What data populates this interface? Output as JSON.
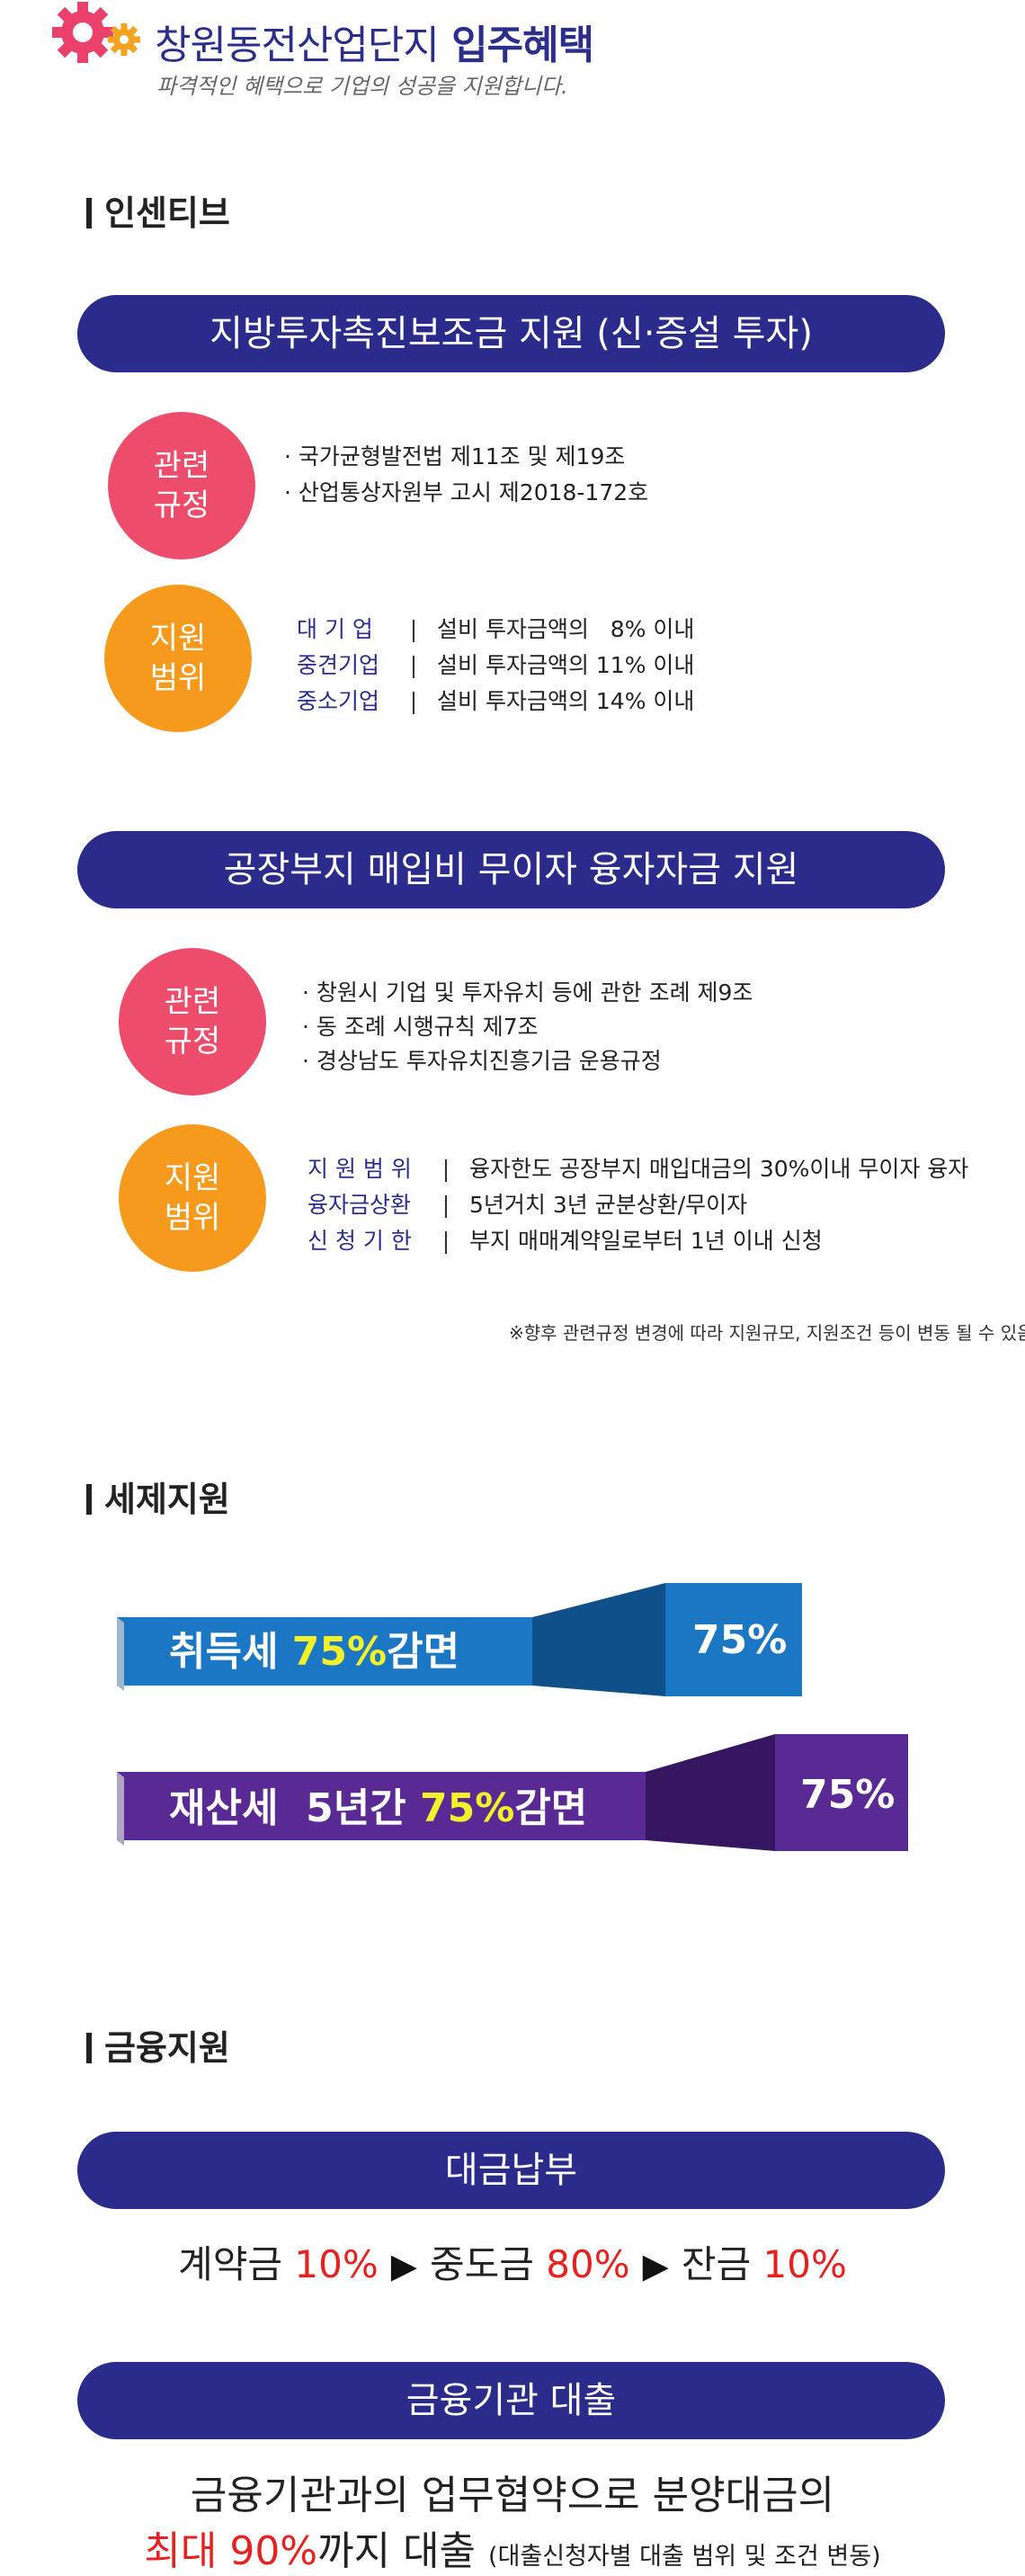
{
  "header": {
    "title_main": "창원동전산업단지",
    "title_accent": "입주혜택",
    "subtitle": "파격적인 혜택으로 기업의 성공을 지원합니다."
  },
  "incentive": {
    "heading": "인센티브",
    "block1": {
      "banner": "지방투자촉진보조금 지원 (신·증설 투자)",
      "rule_circle": [
        "관련",
        "규정"
      ],
      "rules": [
        "· 국가균형발전법 제11조 및 제19조",
        "· 산업통상자원부 고시 제2018-172호"
      ],
      "range_circle": [
        "지원",
        "범위"
      ],
      "ranges": [
        {
          "key": "대 기 업",
          "sep": "|",
          "value": "설비 투자금액의   8% 이내"
        },
        {
          "key": "중견기업",
          "sep": "|",
          "value": "설비 투자금액의 11% 이내"
        },
        {
          "key": "중소기업",
          "sep": "|",
          "value": "설비 투자금액의 14% 이내"
        }
      ]
    },
    "block2": {
      "banner": "공장부지 매입비 무이자 융자자금 지원",
      "rule_circle": [
        "관련",
        "규정"
      ],
      "rules": [
        "· 창원시 기업 및 투자유치 등에 관한 조례 제9조",
        "· 동 조례 시행규칙 제7조",
        "· 경상남도 투자유치진흥기금 운용규정"
      ],
      "range_circle": [
        "지원",
        "범위"
      ],
      "ranges": [
        {
          "key": "지 원 범 위",
          "sep": "|",
          "value": "융자한도 공장부지 매입대금의 30%이내 무이자 융자"
        },
        {
          "key": "융자금상환",
          "sep": "|",
          "value": "5년거치 3년 균분상환/무이자"
        },
        {
          "key": "신 청 기 한",
          "sep": "|",
          "value": "부지 매매계약일로부터 1년 이내 신청"
        }
      ]
    },
    "note": "※향후 관련규정 변경에 따라 지원규모, 지원조건 등이 변동 될 수 있음"
  },
  "tax": {
    "heading": "세제지원",
    "items": [
      {
        "prefix": "취득세 ",
        "highlight": "75%",
        "suffix": "감면",
        "value": "75%",
        "color": "#1b77c4",
        "dark": "#0f4f8a"
      },
      {
        "prefix": "재산세  5년간 ",
        "highlight": "75%",
        "suffix": "감면",
        "value": "75%",
        "color": "#5a2a94",
        "dark": "#361660"
      }
    ]
  },
  "finance": {
    "heading": "금융지원",
    "payment": {
      "banner": "대금납부",
      "steps": [
        {
          "label": "계약금 ",
          "value": "10%"
        },
        {
          "label": "중도금 ",
          "value": "80%"
        },
        {
          "label": "잔금 ",
          "value": "10%"
        }
      ],
      "arrow": "▶"
    },
    "loan": {
      "banner": "금융기관 대출",
      "line1": "금융기관과의 업무협약으로 분양대금의",
      "line2_red": "최대 90%",
      "line2_text": "까지 대출 ",
      "line2_small": "(대출신청자별 대출 범위 및 조건 변동)"
    }
  },
  "colors": {
    "navy": "#2b2b8c",
    "pink": "#ed4c6b",
    "orange": "#f59a1c",
    "red": "#e52220",
    "yellow": "#f4f02a"
  }
}
